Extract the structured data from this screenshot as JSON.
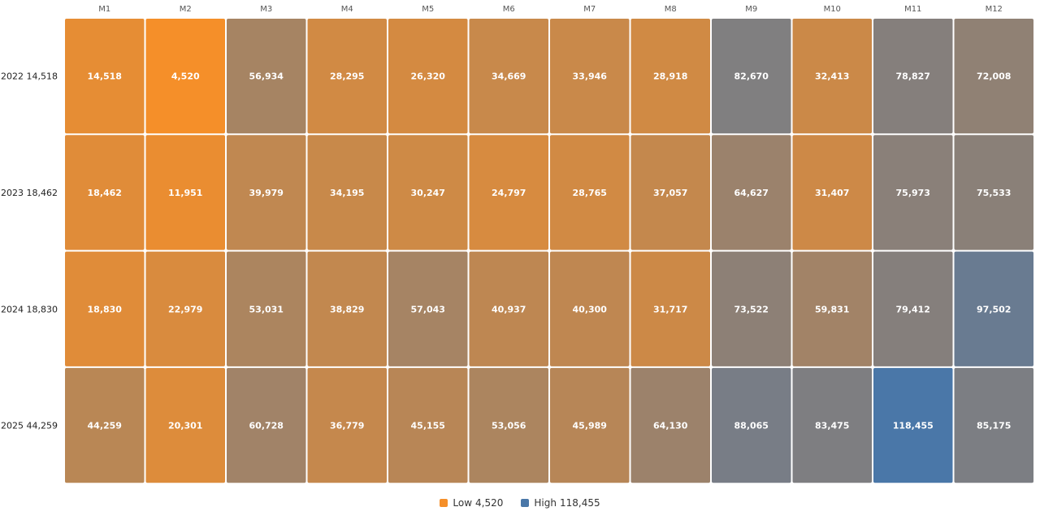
{
  "chart_data": {
    "type": "heatmap",
    "columns": [
      "M1",
      "M2",
      "M3",
      "M4",
      "M5",
      "M6",
      "M7",
      "M8",
      "M9",
      "M10",
      "M11",
      "M12"
    ],
    "rows": [
      {
        "year": "2022",
        "first_value": "14,518",
        "values": [
          14518,
          4520,
          56934,
          28295,
          26320,
          34669,
          33946,
          28918,
          82670,
          32413,
          78827,
          72008
        ]
      },
      {
        "year": "2023",
        "first_value": "18,462",
        "values": [
          18462,
          11951,
          39979,
          34195,
          30247,
          24797,
          28765,
          37057,
          64627,
          31407,
          75973,
          75533
        ]
      },
      {
        "year": "2024",
        "first_value": "18,830",
        "values": [
          18830,
          22979,
          53031,
          38829,
          57043,
          40937,
          40300,
          31717,
          73522,
          59831,
          79412,
          97502
        ]
      },
      {
        "year": "2025",
        "first_value": "44,259",
        "values": [
          44259,
          20301,
          60728,
          36779,
          45155,
          53056,
          45989,
          64130,
          88065,
          83475,
          118455,
          85175
        ]
      }
    ],
    "min": 4520,
    "max": 118455,
    "colors": {
      "low": "#f58f29",
      "high": "#4a77a8"
    }
  },
  "legend": {
    "low_label": "Low",
    "low_value": "4,520",
    "high_label": "High",
    "high_value": "118,455"
  }
}
